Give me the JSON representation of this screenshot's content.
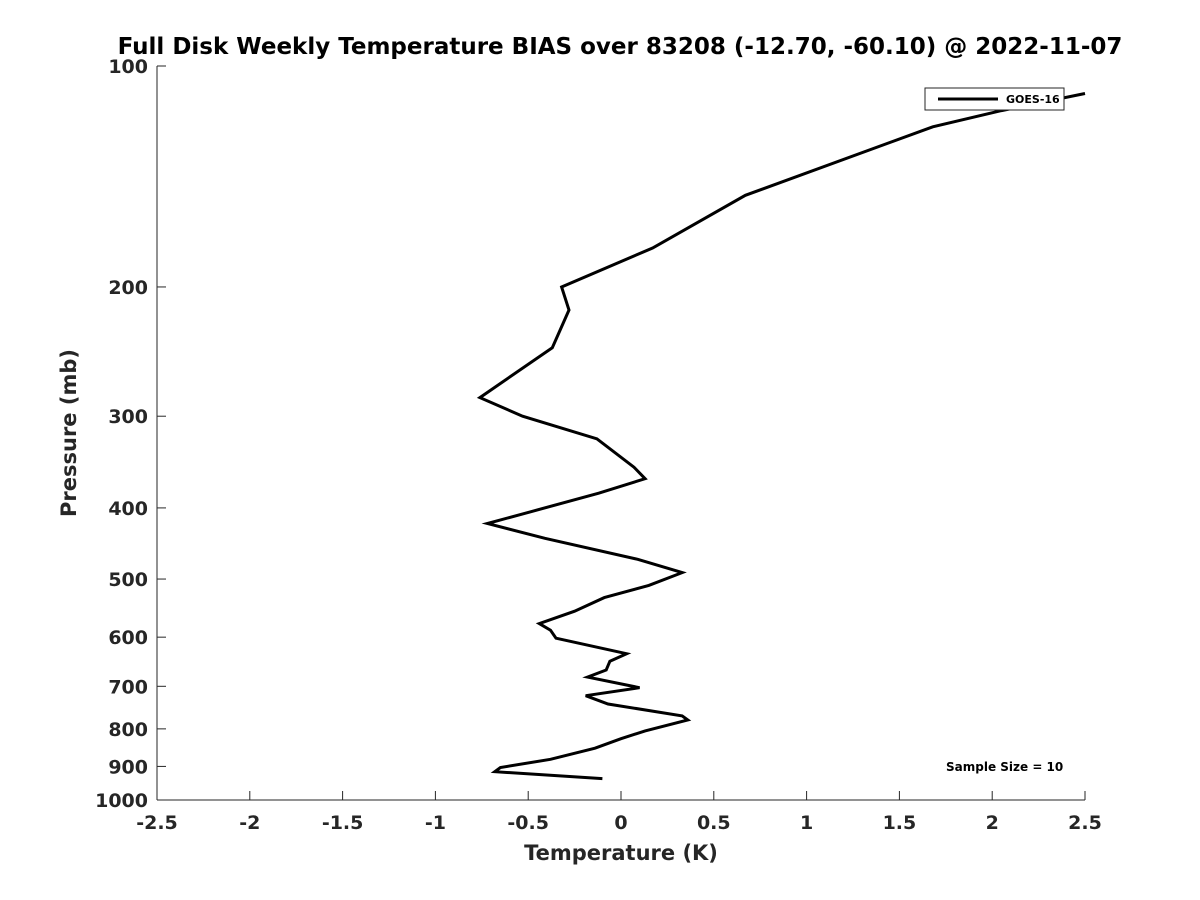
{
  "chart_data": {
    "type": "line",
    "title": "Full Disk Weekly Temperature BIAS over 83208 (-12.70, -60.10) @ 2022-11-07",
    "xlabel": "Temperature (K)",
    "ylabel": "Pressure (mb)",
    "xlim": [
      -2.5,
      2.5
    ],
    "ylim": [
      100,
      1000
    ],
    "y_scale": "log",
    "y_reversed": true,
    "xticks": [
      -2.5,
      -2,
      -1.5,
      -1,
      -0.5,
      0,
      0.5,
      1,
      1.5,
      2,
      2.5
    ],
    "xtick_labels": [
      "-2.5",
      "-2",
      "-1.5",
      "-1",
      "-0.5",
      "0",
      "0.5",
      "1",
      "1.5",
      "2",
      "2.5"
    ],
    "yticks": [
      100,
      200,
      300,
      400,
      500,
      600,
      700,
      800,
      900,
      1000
    ],
    "ytick_labels": [
      "100",
      "200",
      "300",
      "400",
      "500",
      "600",
      "700",
      "800",
      "900",
      "1000"
    ],
    "grid": false,
    "legend_position": "top-right",
    "series": [
      {
        "name": "GOES-16",
        "color": "#000000",
        "points": [
          {
            "x": 2.5,
            "y": 109
          },
          {
            "x": 2.05,
            "y": 115
          },
          {
            "x": 1.68,
            "y": 121
          },
          {
            "x": 0.67,
            "y": 150
          },
          {
            "x": 0.17,
            "y": 177
          },
          {
            "x": -0.32,
            "y": 200
          },
          {
            "x": -0.28,
            "y": 215
          },
          {
            "x": -0.37,
            "y": 242
          },
          {
            "x": -0.76,
            "y": 283
          },
          {
            "x": -0.53,
            "y": 300
          },
          {
            "x": -0.13,
            "y": 322
          },
          {
            "x": 0.07,
            "y": 352
          },
          {
            "x": 0.13,
            "y": 365
          },
          {
            "x": -0.12,
            "y": 382
          },
          {
            "x": -0.49,
            "y": 405
          },
          {
            "x": -0.72,
            "y": 420
          },
          {
            "x": -0.41,
            "y": 440
          },
          {
            "x": 0.09,
            "y": 470
          },
          {
            "x": 0.33,
            "y": 490
          },
          {
            "x": 0.15,
            "y": 510
          },
          {
            "x": -0.09,
            "y": 530
          },
          {
            "x": -0.25,
            "y": 553
          },
          {
            "x": -0.44,
            "y": 575
          },
          {
            "x": -0.38,
            "y": 587
          },
          {
            "x": -0.35,
            "y": 602
          },
          {
            "x": 0.03,
            "y": 632
          },
          {
            "x": -0.06,
            "y": 647
          },
          {
            "x": -0.08,
            "y": 665
          },
          {
            "x": -0.18,
            "y": 680
          },
          {
            "x": 0.1,
            "y": 703
          },
          {
            "x": -0.19,
            "y": 721
          },
          {
            "x": -0.07,
            "y": 740
          },
          {
            "x": 0.33,
            "y": 768
          },
          {
            "x": 0.36,
            "y": 778
          },
          {
            "x": 0.13,
            "y": 805
          },
          {
            "x": 0.0,
            "y": 825
          },
          {
            "x": -0.14,
            "y": 850
          },
          {
            "x": -0.38,
            "y": 880
          },
          {
            "x": -0.65,
            "y": 903
          },
          {
            "x": -0.68,
            "y": 915
          },
          {
            "x": -0.1,
            "y": 935
          }
        ]
      }
    ],
    "annotations": [
      "Sample Size = 10"
    ]
  }
}
